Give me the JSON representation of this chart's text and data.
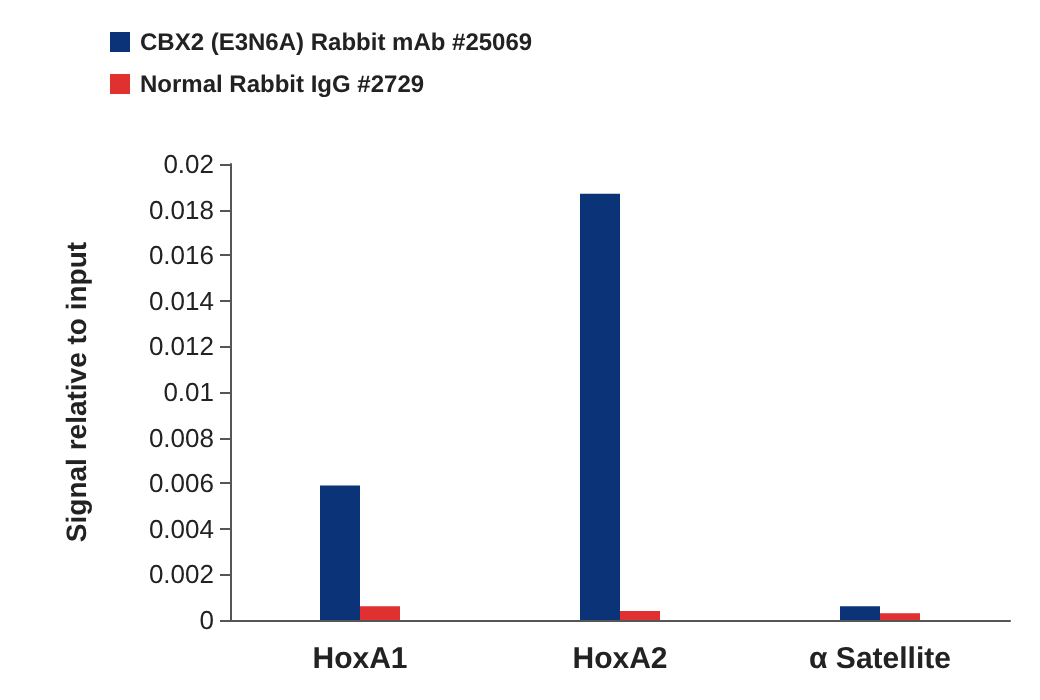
{
  "chart_data": {
    "type": "bar",
    "ylabel": "Signal relative to input",
    "categories": [
      "HoxA1",
      "HoxA2",
      "α Satellite"
    ],
    "series": [
      {
        "name": "CBX2 (E3N6A) Rabbit mAb #25069",
        "color": "#0b3478",
        "values": [
          0.0059,
          0.0187,
          0.0006
        ]
      },
      {
        "name": "Normal Rabbit IgG #2729",
        "color": "#e03030",
        "values": [
          0.0006,
          0.0004,
          0.0003
        ]
      }
    ],
    "ylim": [
      0,
      0.02
    ],
    "yticks": [
      0,
      0.002,
      0.004,
      0.006,
      0.008,
      0.01,
      0.012,
      0.014,
      0.016,
      0.018,
      0.02
    ],
    "grid": false,
    "legend": "top left"
  }
}
